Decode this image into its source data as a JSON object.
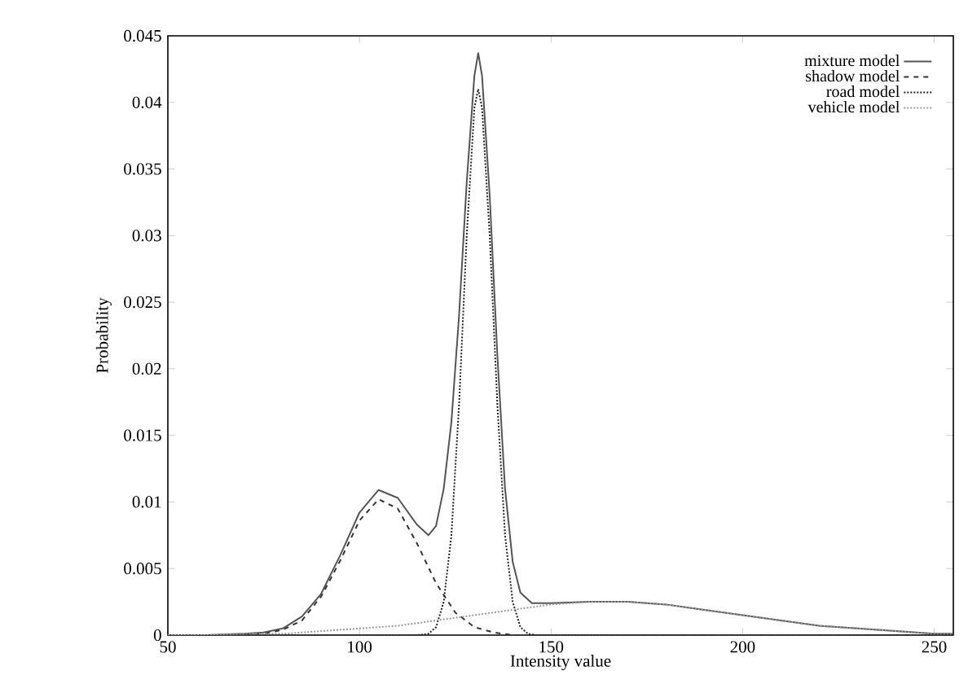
{
  "chart_data": {
    "type": "line",
    "xlabel": "Intensity value",
    "ylabel": "Probability",
    "xlim": [
      50,
      255
    ],
    "ylim": [
      0,
      0.045
    ],
    "xticks": [
      50,
      100,
      150,
      200,
      250
    ],
    "yticks": [
      0,
      0.005,
      0.01,
      0.015,
      0.02,
      0.025,
      0.03,
      0.035,
      0.04,
      0.045
    ],
    "grid": false,
    "legend": "top right",
    "marker": "none",
    "series": [
      {
        "name": "mixture model",
        "color": "#555555",
        "line_style": "solid",
        "x": [
          50,
          60,
          70,
          75,
          80,
          85,
          90,
          95,
          100,
          105,
          110,
          115,
          118,
          120,
          122,
          124,
          126,
          128,
          130,
          131,
          132,
          134,
          136,
          138,
          140,
          142,
          145,
          150,
          160,
          170,
          180,
          190,
          200,
          210,
          220,
          230,
          240,
          250,
          255
        ],
        "values": [
          0,
          0,
          0.0001,
          0.0002,
          0.0005,
          0.0014,
          0.0031,
          0.006,
          0.0092,
          0.0109,
          0.0103,
          0.0083,
          0.0075,
          0.0082,
          0.011,
          0.016,
          0.024,
          0.034,
          0.042,
          0.0437,
          0.042,
          0.033,
          0.021,
          0.011,
          0.0055,
          0.0032,
          0.0024,
          0.0024,
          0.0025,
          0.0025,
          0.0023,
          0.0019,
          0.0015,
          0.0011,
          0.0007,
          0.0005,
          0.0003,
          0.0001,
          0.0001
        ]
      },
      {
        "name": "shadow model",
        "color": "#333333",
        "line_style": "dashed",
        "x": [
          50,
          60,
          70,
          75,
          80,
          85,
          90,
          95,
          100,
          105,
          110,
          115,
          120,
          125,
          130,
          135,
          140,
          150,
          160,
          255
        ],
        "values": [
          0,
          0,
          0,
          0.0001,
          0.0004,
          0.0011,
          0.0029,
          0.0056,
          0.0086,
          0.0102,
          0.0095,
          0.0069,
          0.0039,
          0.0017,
          0.0006,
          0.0002,
          0,
          0,
          0,
          0
        ]
      },
      {
        "name": "road model",
        "color": "#222222",
        "line_style": "dotted",
        "x": [
          50,
          110,
          115,
          118,
          120,
          122,
          124,
          126,
          128,
          130,
          131,
          132,
          134,
          136,
          138,
          140,
          142,
          144,
          146,
          160,
          255
        ],
        "values": [
          0,
          0,
          0,
          0.0001,
          0.0006,
          0.0025,
          0.0075,
          0.0173,
          0.03,
          0.0396,
          0.041,
          0.0396,
          0.03,
          0.0173,
          0.0075,
          0.0025,
          0.0006,
          0.0001,
          0,
          0,
          0
        ]
      },
      {
        "name": "vehicle model",
        "color": "#999999",
        "line_style": "dotted",
        "x": [
          50,
          60,
          70,
          80,
          90,
          100,
          110,
          120,
          130,
          140,
          150,
          160,
          165,
          170,
          180,
          190,
          200,
          210,
          220,
          230,
          240,
          250,
          255
        ],
        "values": [
          0,
          0,
          0.0001,
          0.0001,
          0.0003,
          0.0005,
          0.0007,
          0.0011,
          0.0015,
          0.0019,
          0.0023,
          0.0025,
          0.0025,
          0.0025,
          0.0023,
          0.0019,
          0.0015,
          0.0011,
          0.0007,
          0.0005,
          0.0003,
          0.0001,
          0.0001
        ]
      }
    ]
  }
}
